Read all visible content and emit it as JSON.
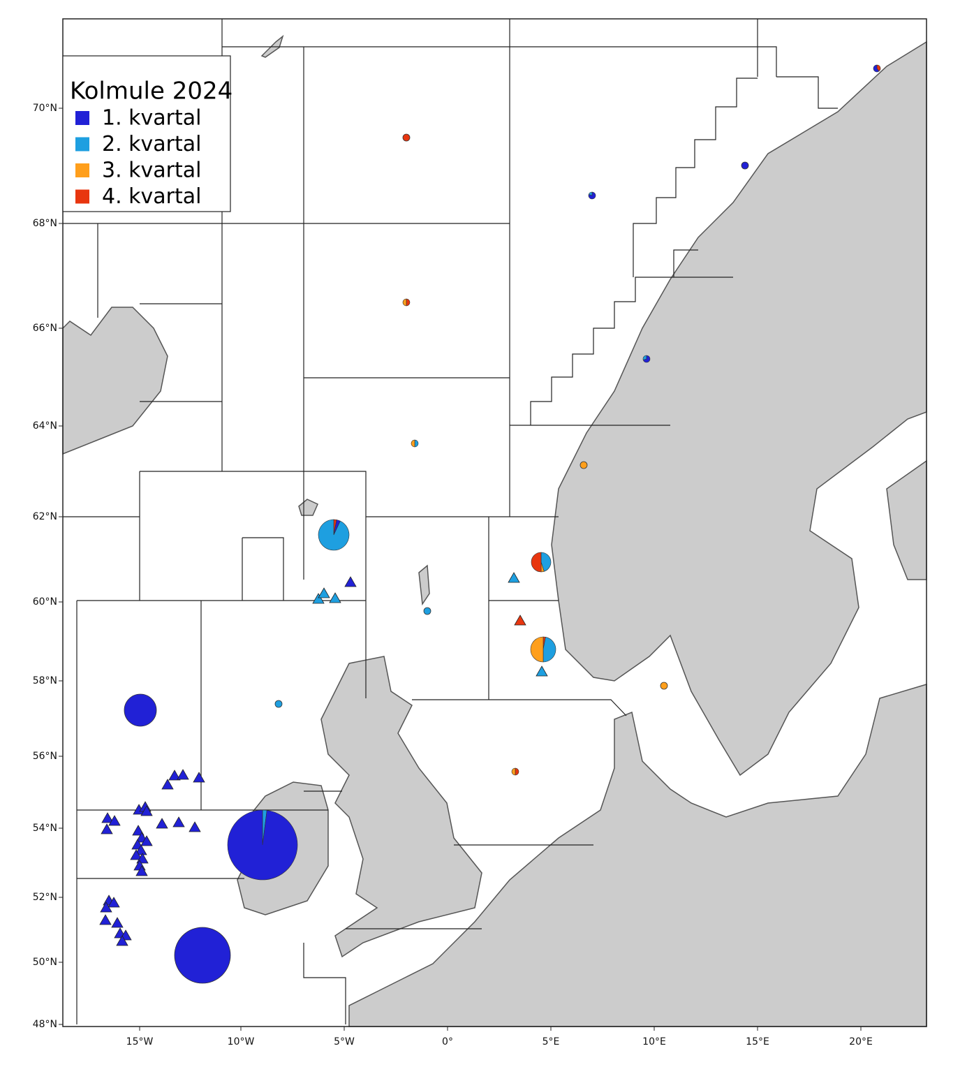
{
  "legend": {
    "title": "Kolmule 2024",
    "items": [
      {
        "label": "1. kvartal",
        "color": "#2121d6"
      },
      {
        "label": "2. kvartal",
        "color": "#1e9fe0"
      },
      {
        "label": "3. kvartal",
        "color": "#ff9f1c"
      },
      {
        "label": "4. kvartal",
        "color": "#e8360f"
      }
    ]
  },
  "axes": {
    "lat_labels": [
      "70°N",
      "68°N",
      "66°N",
      "64°N",
      "62°N",
      "60°N",
      "58°N",
      "56°N",
      "54°N",
      "52°N",
      "50°N",
      "48°N"
    ],
    "lon_labels": [
      "15°W",
      "10°W",
      "5°W",
      "0°",
      "5°E",
      "10°E",
      "15°E",
      "20°E"
    ]
  }
}
